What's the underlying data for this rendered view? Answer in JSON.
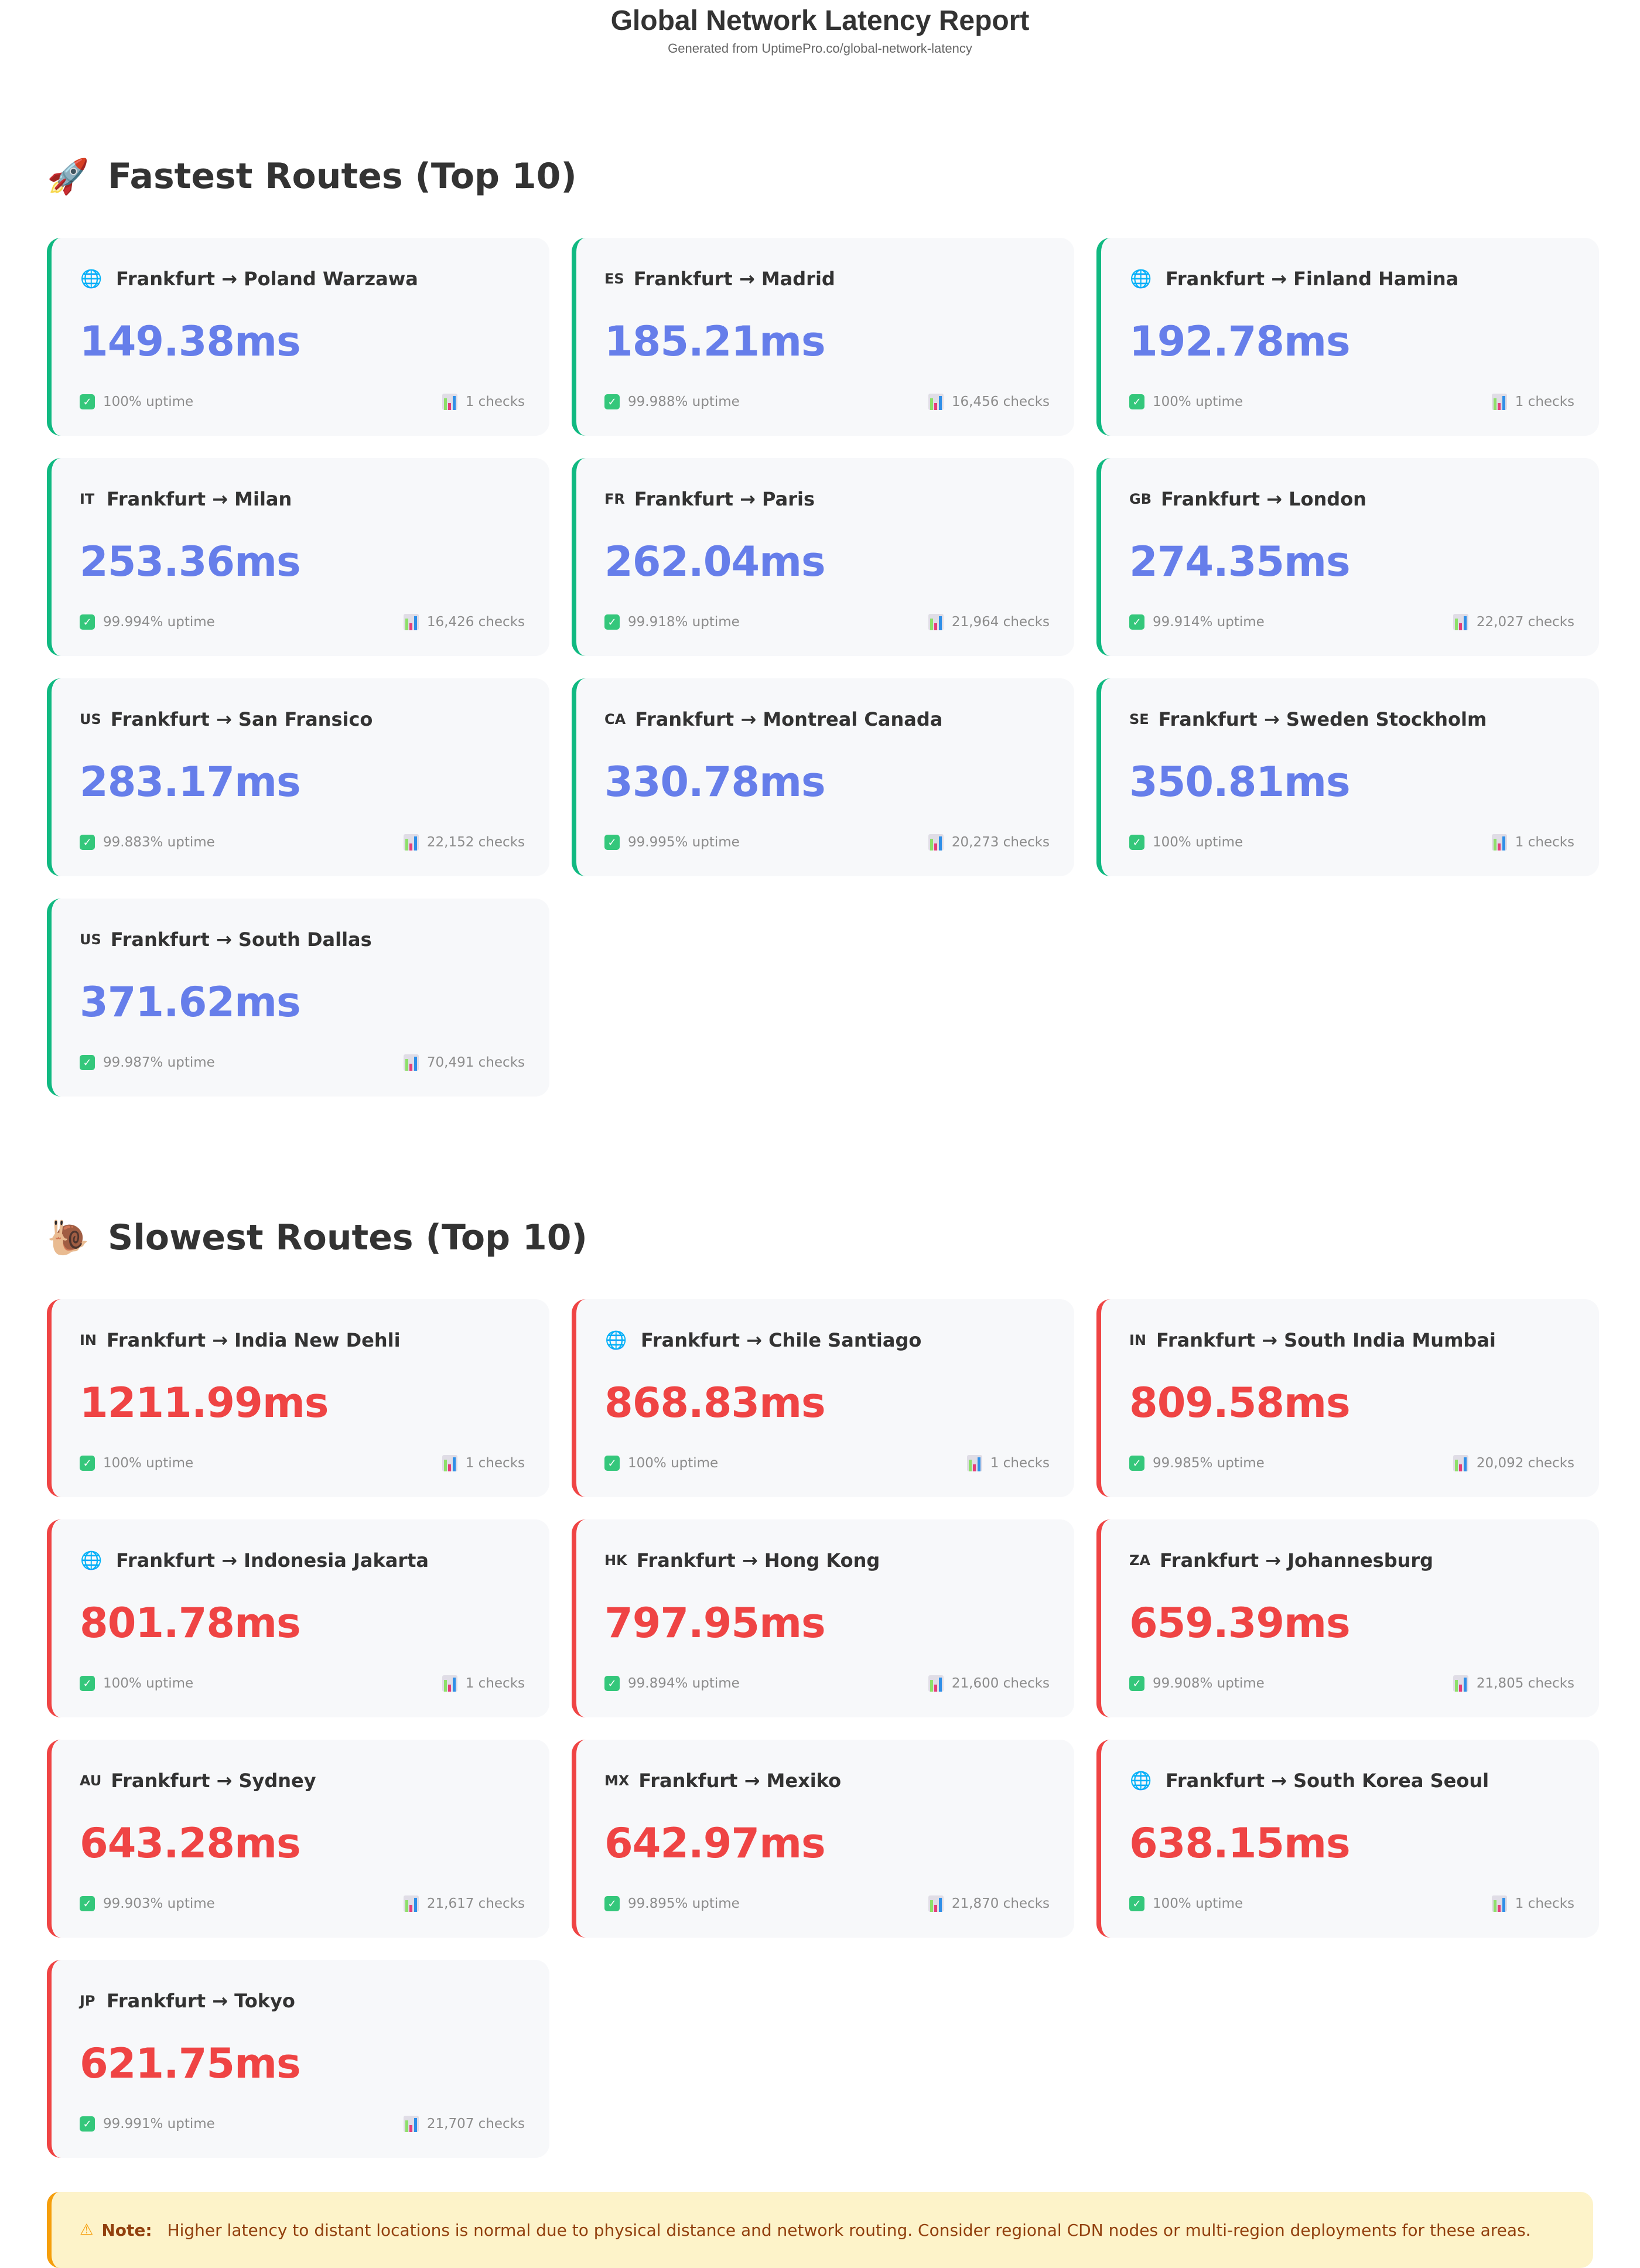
{
  "header": {
    "title": "Global Network Latency Report",
    "subtitle": "Generated from UptimePro.co/global-network-latency"
  },
  "fastest": {
    "icon": "rocket-icon",
    "emoji": "🚀",
    "title": "Fastest Routes (Top 10)",
    "accent_color": "#10b981",
    "value_color": "#667eea",
    "routes": [
      {
        "flag": "🌐",
        "flag_type": "globe",
        "route": "Frankfurt → Poland Warzawa",
        "latency": "149.38ms",
        "uptime": "100% uptime",
        "checks": "1 checks"
      },
      {
        "flag": "ES",
        "flag_type": "code",
        "route": "Frankfurt → Madrid",
        "latency": "185.21ms",
        "uptime": "99.988% uptime",
        "checks": "16,456 checks"
      },
      {
        "flag": "🌐",
        "flag_type": "globe",
        "route": "Frankfurt → Finland Hamina",
        "latency": "192.78ms",
        "uptime": "100% uptime",
        "checks": "1 checks"
      },
      {
        "flag": "IT",
        "flag_type": "code",
        "route": "Frankfurt → Milan",
        "latency": "253.36ms",
        "uptime": "99.994% uptime",
        "checks": "16,426 checks"
      },
      {
        "flag": "FR",
        "flag_type": "code",
        "route": "Frankfurt → Paris",
        "latency": "262.04ms",
        "uptime": "99.918% uptime",
        "checks": "21,964 checks"
      },
      {
        "flag": "GB",
        "flag_type": "code",
        "route": "Frankfurt → London",
        "latency": "274.35ms",
        "uptime": "99.914% uptime",
        "checks": "22,027 checks"
      },
      {
        "flag": "US",
        "flag_type": "code",
        "route": "Frankfurt → San Fransico",
        "latency": "283.17ms",
        "uptime": "99.883% uptime",
        "checks": "22,152 checks"
      },
      {
        "flag": "CA",
        "flag_type": "code",
        "route": "Frankfurt → Montreal Canada",
        "latency": "330.78ms",
        "uptime": "99.995% uptime",
        "checks": "20,273 checks"
      },
      {
        "flag": "SE",
        "flag_type": "code",
        "route": "Frankfurt → Sweden Stockholm",
        "latency": "350.81ms",
        "uptime": "100% uptime",
        "checks": "1 checks"
      },
      {
        "flag": "US",
        "flag_type": "code",
        "route": "Frankfurt → South Dallas",
        "latency": "371.62ms",
        "uptime": "99.987% uptime",
        "checks": "70,491 checks"
      }
    ]
  },
  "slowest": {
    "icon": "snail-icon",
    "emoji": "🐌",
    "title": "Slowest Routes (Top 10)",
    "accent_color": "#ef4444",
    "value_color": "#ef4444",
    "routes": [
      {
        "flag": "IN",
        "flag_type": "code",
        "route": "Frankfurt → India New Dehli",
        "latency": "1211.99ms",
        "uptime": "100% uptime",
        "checks": "1 checks"
      },
      {
        "flag": "🌐",
        "flag_type": "globe",
        "route": "Frankfurt → Chile Santiago",
        "latency": "868.83ms",
        "uptime": "100% uptime",
        "checks": "1 checks"
      },
      {
        "flag": "IN",
        "flag_type": "code",
        "route": "Frankfurt → South India Mumbai",
        "latency": "809.58ms",
        "uptime": "99.985% uptime",
        "checks": "20,092 checks"
      },
      {
        "flag": "🌐",
        "flag_type": "globe",
        "route": "Frankfurt → Indonesia Jakarta",
        "latency": "801.78ms",
        "uptime": "100% uptime",
        "checks": "1 checks"
      },
      {
        "flag": "HK",
        "flag_type": "code",
        "route": "Frankfurt → Hong Kong",
        "latency": "797.95ms",
        "uptime": "99.894% uptime",
        "checks": "21,600 checks"
      },
      {
        "flag": "ZA",
        "flag_type": "code",
        "route": "Frankfurt → Johannesburg",
        "latency": "659.39ms",
        "uptime": "99.908% uptime",
        "checks": "21,805 checks"
      },
      {
        "flag": "AU",
        "flag_type": "code",
        "route": "Frankfurt → Sydney",
        "latency": "643.28ms",
        "uptime": "99.903% uptime",
        "checks": "21,617 checks"
      },
      {
        "flag": "MX",
        "flag_type": "code",
        "route": "Frankfurt → Mexiko",
        "latency": "642.97ms",
        "uptime": "99.895% uptime",
        "checks": "21,870 checks"
      },
      {
        "flag": "🌐",
        "flag_type": "globe",
        "route": "Frankfurt → South Korea Seoul",
        "latency": "638.15ms",
        "uptime": "100% uptime",
        "checks": "1 checks"
      },
      {
        "flag": "JP",
        "flag_type": "code",
        "route": "Frankfurt → Tokyo",
        "latency": "621.75ms",
        "uptime": "99.991% uptime",
        "checks": "21,707 checks"
      }
    ]
  },
  "note": {
    "icon": "⚠",
    "label": "Note:",
    "text": "Higher latency to distant locations is normal due to physical distance and network routing. Consider regional CDN nodes or multi-region deployments for these areas."
  }
}
